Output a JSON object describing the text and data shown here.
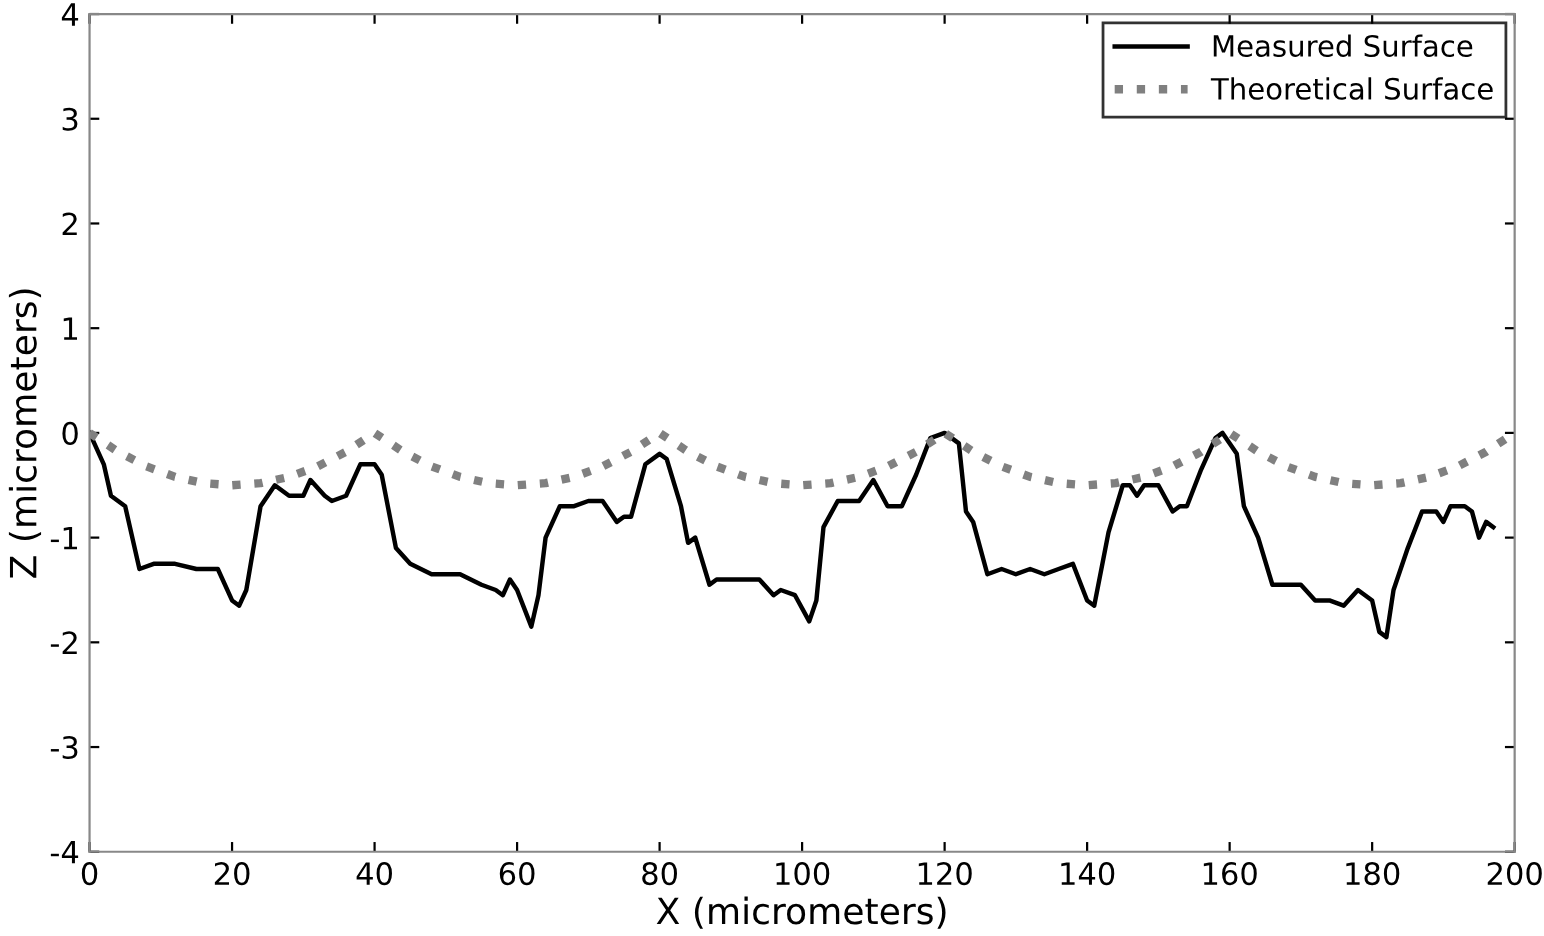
{
  "chart_data": {
    "type": "line",
    "xlabel": "X (micrometers)",
    "ylabel": "Z (micrometers)",
    "xlim": [
      0,
      200
    ],
    "ylim": [
      -4,
      4
    ],
    "xticks": [
      0,
      20,
      40,
      60,
      80,
      100,
      120,
      140,
      160,
      180,
      200
    ],
    "yticks": [
      -4,
      -3,
      -2,
      -1,
      0,
      1,
      2,
      3,
      4
    ],
    "grid": false,
    "legend": "top right",
    "series": [
      {
        "name": "Measured Surface",
        "color": "#000000",
        "line_style": "solid",
        "x": [
          0,
          2,
          3,
          5,
          7,
          9,
          12,
          15,
          18,
          20,
          21,
          22,
          24,
          26,
          28,
          30,
          31,
          33,
          34,
          36,
          38,
          40,
          41,
          43,
          45,
          48,
          50,
          52,
          55,
          57,
          58,
          59,
          60,
          62,
          63,
          64,
          66,
          68,
          70,
          72,
          74,
          75,
          76,
          78,
          80,
          81,
          83,
          84,
          85,
          87,
          88,
          91,
          94,
          96,
          97,
          99,
          101,
          102,
          103,
          105,
          108,
          110,
          112,
          114,
          116,
          118,
          120,
          122,
          123,
          124,
          126,
          128,
          130,
          132,
          134,
          136,
          138,
          140,
          141,
          143,
          145,
          146,
          147,
          148,
          150,
          152,
          153,
          154,
          156,
          158,
          159,
          161,
          162,
          164,
          166,
          168,
          170,
          172,
          174,
          176,
          178,
          180,
          181,
          182,
          183,
          185,
          187,
          189,
          190,
          191,
          193,
          194,
          195,
          196,
          197
        ],
        "values": [
          0,
          -0.3,
          -0.6,
          -0.7,
          -1.3,
          -1.25,
          -1.25,
          -1.3,
          -1.3,
          -1.6,
          -1.65,
          -1.5,
          -0.7,
          -0.5,
          -0.6,
          -0.6,
          -0.45,
          -0.6,
          -0.65,
          -0.6,
          -0.3,
          -0.3,
          -0.4,
          -1.1,
          -1.25,
          -1.35,
          -1.35,
          -1.35,
          -1.45,
          -1.5,
          -1.55,
          -1.4,
          -1.5,
          -1.85,
          -1.55,
          -1.0,
          -0.7,
          -0.7,
          -0.65,
          -0.65,
          -0.85,
          -0.8,
          -0.8,
          -0.3,
          -0.2,
          -0.25,
          -0.7,
          -1.05,
          -1.0,
          -1.45,
          -1.4,
          -1.4,
          -1.4,
          -1.55,
          -1.5,
          -1.55,
          -1.8,
          -1.6,
          -0.9,
          -0.65,
          -0.65,
          -0.45,
          -0.7,
          -0.7,
          -0.4,
          -0.05,
          0,
          -0.1,
          -0.75,
          -0.85,
          -1.35,
          -1.3,
          -1.35,
          -1.3,
          -1.35,
          -1.3,
          -1.25,
          -1.6,
          -1.65,
          -0.95,
          -0.5,
          -0.5,
          -0.6,
          -0.5,
          -0.5,
          -0.75,
          -0.7,
          -0.7,
          -0.35,
          -0.05,
          0,
          -0.2,
          -0.7,
          -1.0,
          -1.45,
          -1.45,
          -1.45,
          -1.6,
          -1.6,
          -1.65,
          -1.5,
          -1.6,
          -1.9,
          -1.95,
          -1.5,
          -1.1,
          -0.75,
          -0.75,
          -0.85,
          -0.7,
          -0.7,
          -0.75,
          -1.0,
          -0.85,
          -0.9
        ]
      },
      {
        "name": "Theoretical Surface",
        "color": "#808080",
        "line_style": "dotted",
        "x": [
          0,
          4,
          8,
          12,
          16,
          20,
          24,
          28,
          32,
          36,
          40,
          44,
          48,
          52,
          56,
          60,
          64,
          68,
          72,
          76,
          80,
          84,
          88,
          92,
          96,
          100,
          104,
          108,
          112,
          116,
          120,
          124,
          128,
          132,
          136,
          140,
          144,
          148,
          152,
          156,
          160,
          164,
          168,
          172,
          176,
          180,
          184,
          188,
          192,
          196,
          200
        ],
        "values": [
          0,
          -0.18,
          -0.32,
          -0.42,
          -0.48,
          -0.5,
          -0.48,
          -0.42,
          -0.32,
          -0.18,
          0,
          -0.18,
          -0.32,
          -0.42,
          -0.48,
          -0.5,
          -0.48,
          -0.42,
          -0.32,
          -0.18,
          0,
          -0.18,
          -0.32,
          -0.42,
          -0.48,
          -0.5,
          -0.48,
          -0.42,
          -0.32,
          -0.18,
          0,
          -0.18,
          -0.32,
          -0.42,
          -0.48,
          -0.5,
          -0.48,
          -0.42,
          -0.32,
          -0.18,
          0,
          -0.18,
          -0.32,
          -0.42,
          -0.48,
          -0.5,
          -0.48,
          -0.42,
          -0.32,
          -0.18,
          0
        ]
      }
    ]
  }
}
